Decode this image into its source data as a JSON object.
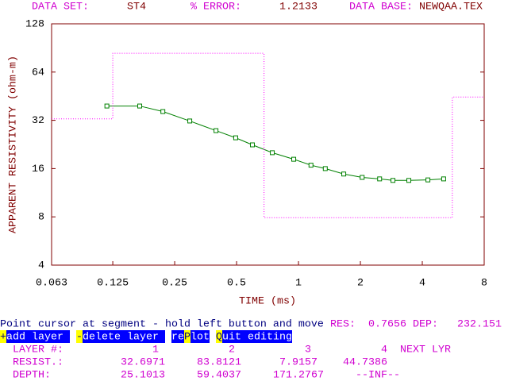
{
  "header": {
    "dataset_label": "DATA SET:",
    "dataset": "ST4",
    "error_label": "% ERROR:",
    "error": 1.2133,
    "database_label": "DATA BASE:",
    "database": "NEWQAA.TEX"
  },
  "chart_data": {
    "type": "line",
    "xlabel": "TIME (ms)",
    "ylabel": "APPARENT RESISTIVITY (ohm-m)",
    "xscale": "log",
    "yscale": "log",
    "xlim": [
      0.063,
      8
    ],
    "ylim": [
      4,
      128
    ],
    "xticks": [
      0.063,
      0.125,
      0.25,
      0.5,
      1,
      2,
      4,
      8
    ],
    "yticks": [
      4,
      8,
      16,
      32,
      64,
      128
    ],
    "frame_color": "#800000",
    "series": [
      {
        "color": "#008000",
        "marker": "square",
        "style": "solid",
        "x": [
          0.117,
          0.169,
          0.219,
          0.296,
          0.397,
          0.495,
          0.597,
          0.746,
          0.948,
          1.15,
          1.35,
          1.66,
          2.04,
          2.48,
          2.88,
          3.44,
          4.26,
          5.08
        ],
        "values": [
          39.3,
          39.3,
          36.3,
          31.7,
          27.6,
          24.9,
          22.5,
          20.1,
          18.3,
          16.8,
          16.0,
          14.8,
          14.1,
          13.8,
          13.5,
          13.5,
          13.6,
          13.8
        ]
      },
      {
        "color": "#ff00ff",
        "style": "dotted",
        "x": [
          0.063,
          0.125,
          0.125,
          0.68,
          0.68,
          5.6,
          5.6,
          8
        ],
        "values": [
          32.7,
          32.7,
          83.8,
          83.8,
          7.9,
          7.9,
          44.7,
          44.7
        ]
      }
    ]
  },
  "status": {
    "message": "Point cursor at segment - hold left button and move",
    "res_label": "RES:",
    "res": 0.7656,
    "dep_label": "DEP:",
    "dep": 232.151
  },
  "menu": [
    {
      "key": "+",
      "text": " add layer"
    },
    {
      "key": "-",
      "text": " delete layer"
    },
    {
      "prefix": "re",
      "key": "P",
      "text": "lot"
    },
    {
      "key": "Q",
      "text": "uit editing"
    }
  ],
  "table": {
    "layer_label": "LAYER #:",
    "layers": [
      1,
      2,
      3,
      4
    ],
    "next_label": "NEXT LYR",
    "resist_label": "RESIST.:",
    "resist": [
      32.6971,
      83.8121,
      7.9157,
      44.7386
    ],
    "depth_label": "DEPTH:",
    "depth": [
      25.1013,
      59.4037,
      171.2767,
      "--INF--"
    ]
  }
}
